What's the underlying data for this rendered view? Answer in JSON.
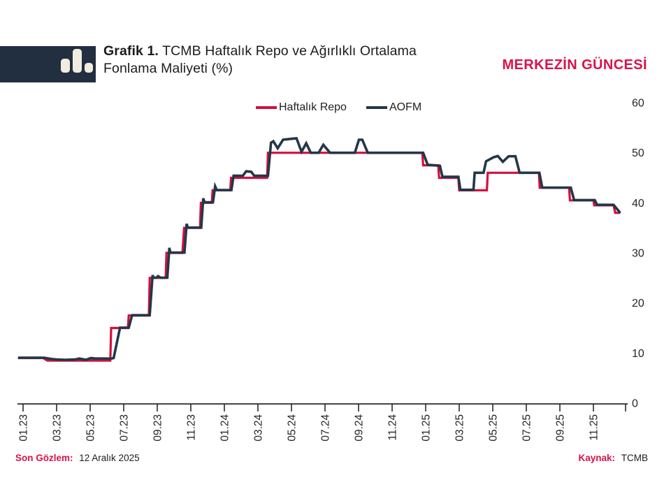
{
  "header": {
    "title_prefix": "Grafik 1.",
    "title_line1_rest": " TCMB Haftalık Repo ve Ağırlıklı Ortalama",
    "title_line2": "Fonlama Maliyeti (%)",
    "brand": "MERKEZİN GÜNCESİ"
  },
  "logo": {
    "icon": "bar-chart-icon"
  },
  "footer": {
    "left_label": "Son Gözlem:",
    "left_value": "12 Aralık 2025",
    "right_label": "Kaynak:",
    "right_value": "TCMB"
  },
  "colors": {
    "brand": "#d81348",
    "accent_red": "#d40f3e",
    "navy": "#233748",
    "logo_bg": "#222f40",
    "logo_bar": "#f1ecdf",
    "text": "#262626",
    "axis": "#1a1a1a"
  },
  "chart_data": {
    "type": "line",
    "title": "Grafik 1. TCMB Haftalık Repo ve Ağırlıklı Ortalama Fonlama Maliyeti (%)",
    "xlabel": "",
    "ylabel": "",
    "x_unit": "months since Jan 2023 (tick step = 2 months)",
    "x_tick_labels": [
      "01.23",
      "03.23",
      "05.23",
      "07.23",
      "09.23",
      "11.23",
      "01.24",
      "03.24",
      "05.24",
      "07.24",
      "09.24",
      "11.24",
      "01.25",
      "03.25",
      "05.25",
      "07.25",
      "09.25",
      "11.25"
    ],
    "y_ticks": [
      0,
      10,
      20,
      30,
      40,
      50,
      60
    ],
    "ylim": [
      0,
      60
    ],
    "grid": false,
    "legend_position": "top-center",
    "last_observation": "12 Aralık 2025",
    "source": "TCMB",
    "series": [
      {
        "name": "Haftalık Repo",
        "color": "#d40f3e",
        "points": [
          [
            -0.3,
            9
          ],
          [
            1.2,
            9
          ],
          [
            1.45,
            8.5
          ],
          [
            5.2,
            8.5
          ],
          [
            5.25,
            15
          ],
          [
            6.25,
            15
          ],
          [
            6.3,
            17.5
          ],
          [
            7.5,
            17.5
          ],
          [
            7.55,
            25
          ],
          [
            8.5,
            25
          ],
          [
            8.55,
            30
          ],
          [
            9.5,
            30
          ],
          [
            9.6,
            35
          ],
          [
            10.55,
            35
          ],
          [
            10.6,
            40
          ],
          [
            11.25,
            40
          ],
          [
            11.3,
            42.5
          ],
          [
            12.35,
            42.5
          ],
          [
            12.4,
            45
          ],
          [
            14.55,
            45
          ],
          [
            14.6,
            50
          ],
          [
            23.8,
            50
          ],
          [
            23.85,
            47.5
          ],
          [
            24.75,
            47.5
          ],
          [
            24.8,
            45
          ],
          [
            25.95,
            45
          ],
          [
            26.0,
            42.5
          ],
          [
            27.65,
            42.5
          ],
          [
            27.7,
            46
          ],
          [
            30.75,
            46
          ],
          [
            30.8,
            43
          ],
          [
            32.55,
            43
          ],
          [
            32.6,
            40.5
          ],
          [
            34.0,
            40.5
          ],
          [
            34.05,
            39.5
          ],
          [
            35.2,
            39.5
          ],
          [
            35.3,
            38
          ],
          [
            35.6,
            38
          ]
        ]
      },
      {
        "name": "AOFM",
        "color": "#233748",
        "points": [
          [
            -0.3,
            9.05
          ],
          [
            1.25,
            9.05
          ],
          [
            1.7,
            8.8
          ],
          [
            2.0,
            8.7
          ],
          [
            2.5,
            8.65
          ],
          [
            3.1,
            8.7
          ],
          [
            3.35,
            8.9
          ],
          [
            3.75,
            8.65
          ],
          [
            4.05,
            9.0
          ],
          [
            4.3,
            8.9
          ],
          [
            5.0,
            8.9
          ],
          [
            5.2,
            8.85
          ],
          [
            5.4,
            9.0
          ],
          [
            5.78,
            15.05
          ],
          [
            6.3,
            15.05
          ],
          [
            6.5,
            17.55
          ],
          [
            7.55,
            17.55
          ],
          [
            7.72,
            25.55
          ],
          [
            7.78,
            25.05
          ],
          [
            7.95,
            25.05
          ],
          [
            8.05,
            25.35
          ],
          [
            8.2,
            25.05
          ],
          [
            8.6,
            25.05
          ],
          [
            8.72,
            31.0
          ],
          [
            8.78,
            30.05
          ],
          [
            9.62,
            30.05
          ],
          [
            9.75,
            35.8
          ],
          [
            9.82,
            35.05
          ],
          [
            10.62,
            35.05
          ],
          [
            10.74,
            40.9
          ],
          [
            10.82,
            40.1
          ],
          [
            11.32,
            40.1
          ],
          [
            11.45,
            43.3
          ],
          [
            11.55,
            42.55
          ],
          [
            12.42,
            42.55
          ],
          [
            12.55,
            45.4
          ],
          [
            13.1,
            45.4
          ],
          [
            13.3,
            46.3
          ],
          [
            13.6,
            46.2
          ],
          [
            13.78,
            45.4
          ],
          [
            14.6,
            45.4
          ],
          [
            14.78,
            52.0
          ],
          [
            14.92,
            52.3
          ],
          [
            15.18,
            50.9
          ],
          [
            15.5,
            52.6
          ],
          [
            16.05,
            52.8
          ],
          [
            16.3,
            52.9
          ],
          [
            16.6,
            50.2
          ],
          [
            16.88,
            51.9
          ],
          [
            17.15,
            50.0
          ],
          [
            17.62,
            50.0
          ],
          [
            17.9,
            51.6
          ],
          [
            18.3,
            50.0
          ],
          [
            19.78,
            50.0
          ],
          [
            20.02,
            52.6
          ],
          [
            20.22,
            52.6
          ],
          [
            20.55,
            50.0
          ],
          [
            23.85,
            50.0
          ],
          [
            24.12,
            47.6
          ],
          [
            24.5,
            47.5
          ],
          [
            24.85,
            47.4
          ],
          [
            25.0,
            45.2
          ],
          [
            25.95,
            45.2
          ],
          [
            26.07,
            42.6
          ],
          [
            26.85,
            42.6
          ],
          [
            26.92,
            46.0
          ],
          [
            27.45,
            46.0
          ],
          [
            27.6,
            48.3
          ],
          [
            28.05,
            49.1
          ],
          [
            28.3,
            49.35
          ],
          [
            28.6,
            48.2
          ],
          [
            28.95,
            49.3
          ],
          [
            29.35,
            49.3
          ],
          [
            29.6,
            46.0
          ],
          [
            30.78,
            46.0
          ],
          [
            30.95,
            43.05
          ],
          [
            32.65,
            43.05
          ],
          [
            32.85,
            40.55
          ],
          [
            34.08,
            40.55
          ],
          [
            34.22,
            39.6
          ],
          [
            35.2,
            39.6
          ],
          [
            35.6,
            38.0
          ]
        ]
      }
    ]
  }
}
